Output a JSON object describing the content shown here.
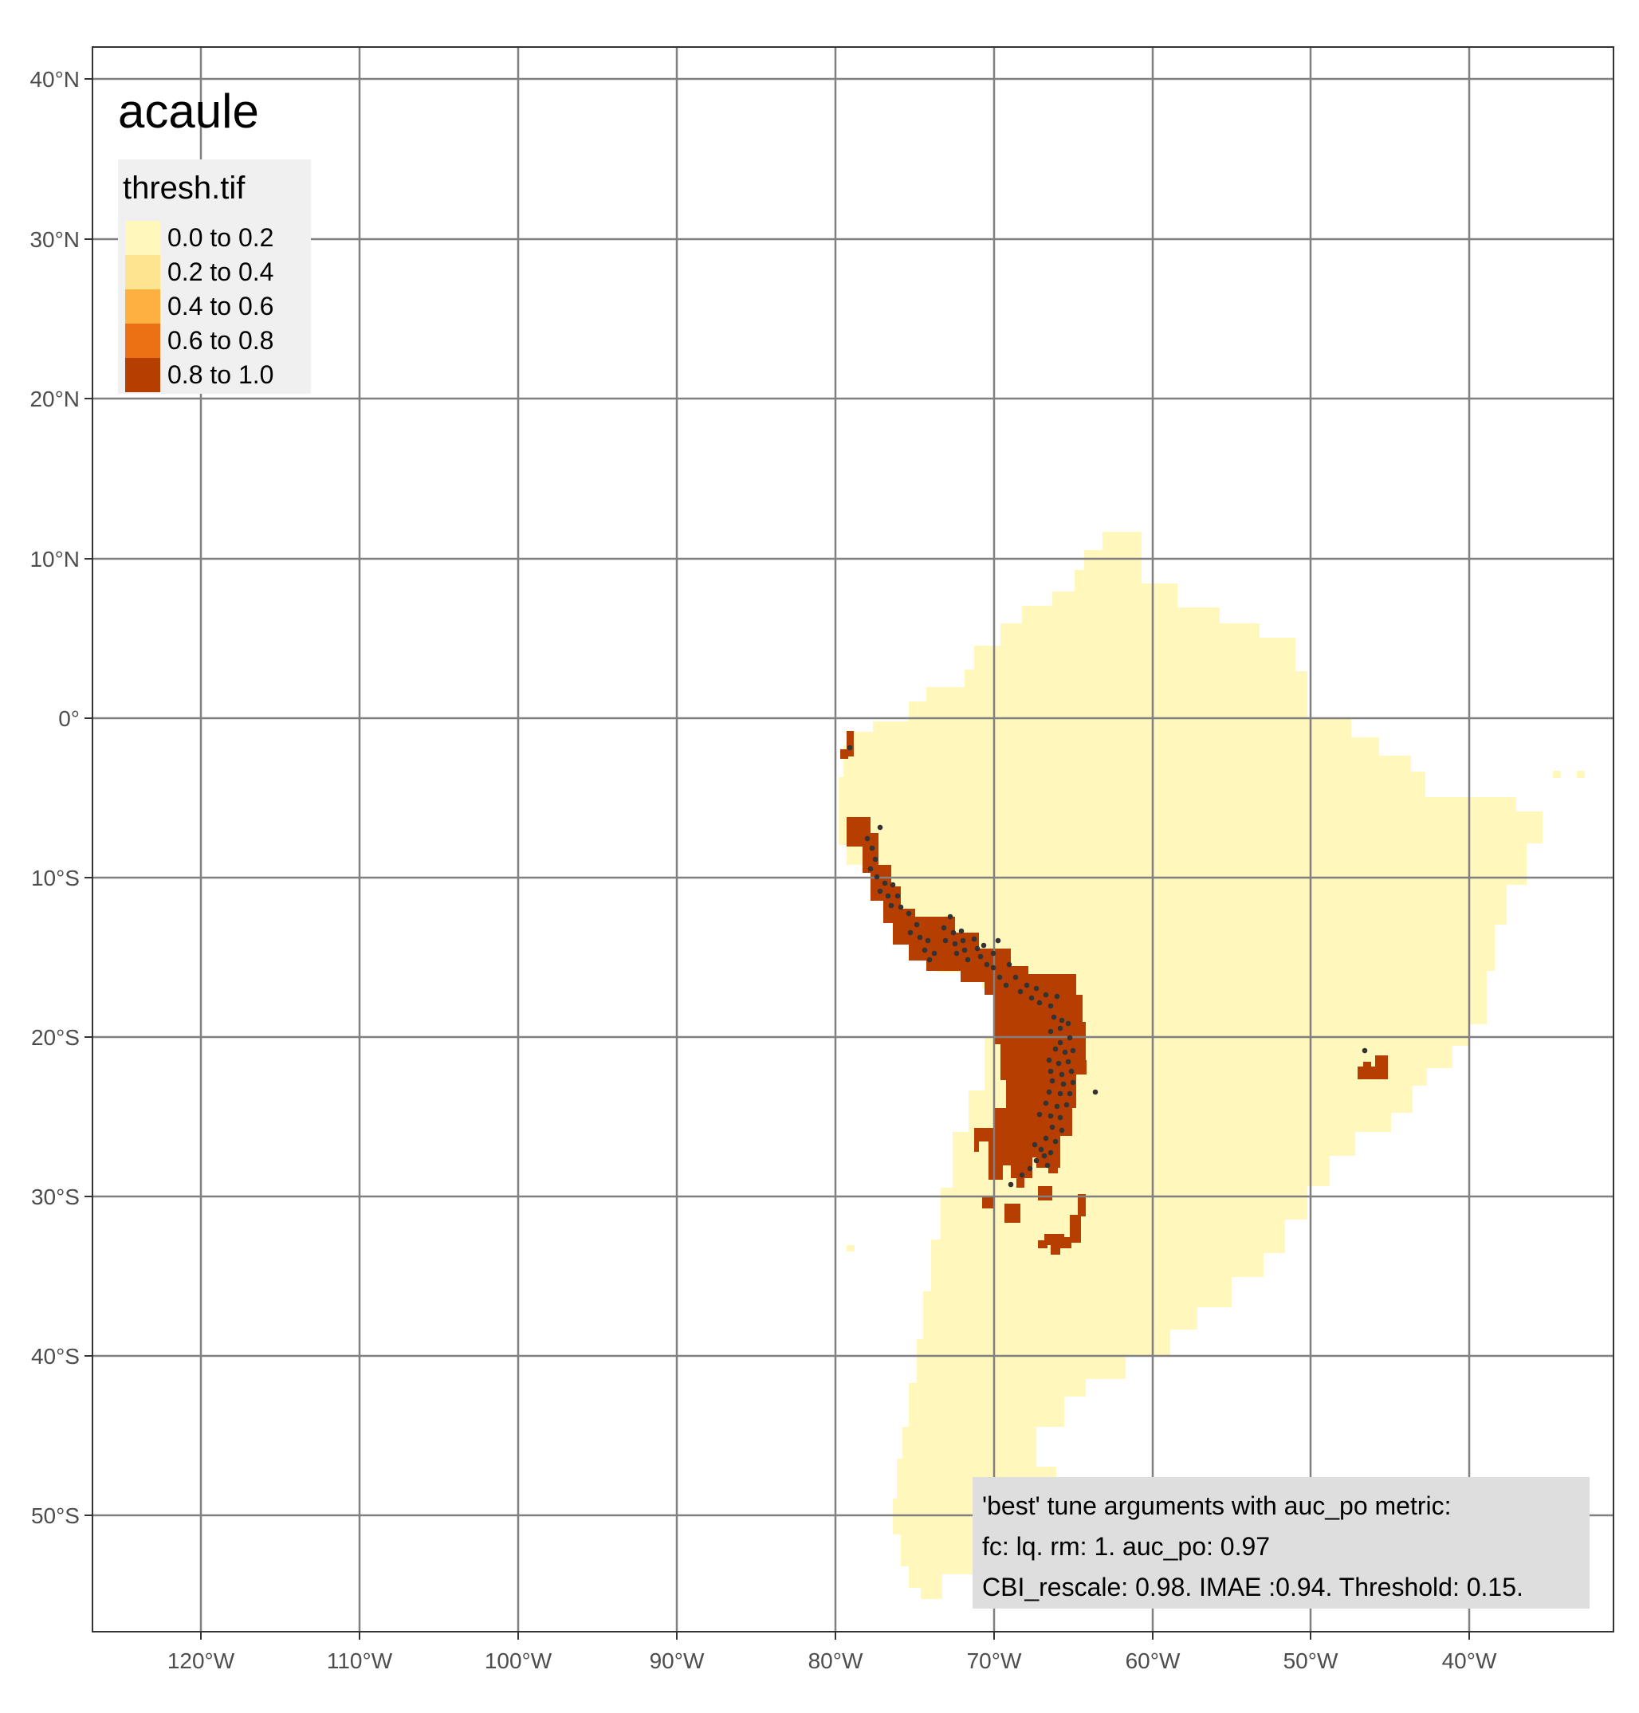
{
  "title": "acaule",
  "legend": {
    "title": "thresh.tif",
    "items": [
      {
        "label": "0.0 to 0.2",
        "color": "#FFF7BC"
      },
      {
        "label": "0.2 to 0.4",
        "color": "#FEE391"
      },
      {
        "label": "0.4 to 0.6",
        "color": "#FEB040"
      },
      {
        "label": "0.6 to 0.8",
        "color": "#EC7014"
      },
      {
        "label": "0.8 to 1.0",
        "color": "#B63E00"
      }
    ]
  },
  "axes": {
    "lon_ticks": [
      "120°W",
      "110°W",
      "100°W",
      "90°W",
      "80°W",
      "70°W",
      "60°W",
      "50°W",
      "40°W"
    ],
    "lat_ticks": [
      "40°N",
      "30°N",
      "20°N",
      "10°N",
      "0°",
      "10°S",
      "20°S",
      "30°S",
      "40°S",
      "50°S"
    ],
    "lon_range": [
      -127,
      -31
    ],
    "lat_range": [
      -57,
      42
    ]
  },
  "annotation": {
    "lines": [
      "'best' tune arguments with auc_po metric:",
      "fc: lq. rm: 1. auc_po: 0.97",
      "CBI_rescale: 0.98. IMAE :0.94. Threshold: 0.15."
    ]
  },
  "colors": {
    "land_low": "#FFF7BC",
    "land_high": "#B63E00",
    "points": "#333333",
    "grid": "#808080",
    "legend_bg": "#F0F0F0",
    "annotation_bg": "#DEDEDE"
  }
}
